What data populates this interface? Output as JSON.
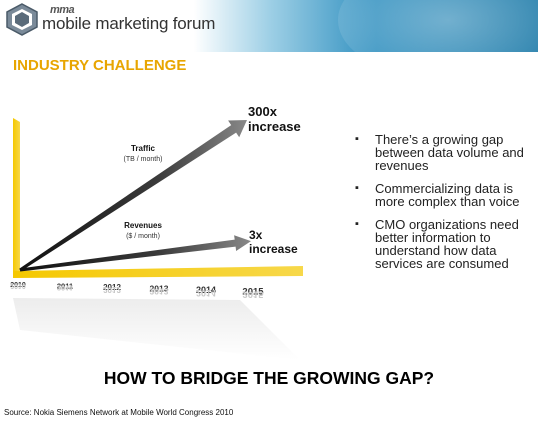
{
  "header": {
    "brand_prefix": "mma",
    "brand_name": "mobile marketing forum"
  },
  "slide": {
    "title": "INDUSTRY CHALLENGE",
    "question": "HOW TO BRIDGE THE GROWING GAP?",
    "source": "Source: Nokia Siemens Network at Mobile World Congress 2010"
  },
  "bullets": [
    "There’s a growing gap between  data volume and revenues",
    "Commercializing data is more complex than voice",
    "CMO organizations need better information to understand how data services are consumed"
  ],
  "colors": {
    "title": "#e8a500",
    "header_blue": "#1f7fae",
    "axis_yellow": "#f5c800",
    "arrow_dark": "#2a2a2a"
  },
  "chart_data": {
    "type": "line",
    "categories": [
      "2010",
      "2011",
      "2012",
      "2013",
      "2014",
      "2015"
    ],
    "series": [
      {
        "name": "Traffic",
        "unit": "(TB / month)",
        "growth": "300x",
        "growth_label": "increase",
        "start": 1,
        "end": 300
      },
      {
        "name": "Revenues",
        "unit": "($ / month)",
        "growth": "3x",
        "growth_label": "increase",
        "start": 1,
        "end": 3
      }
    ]
  }
}
